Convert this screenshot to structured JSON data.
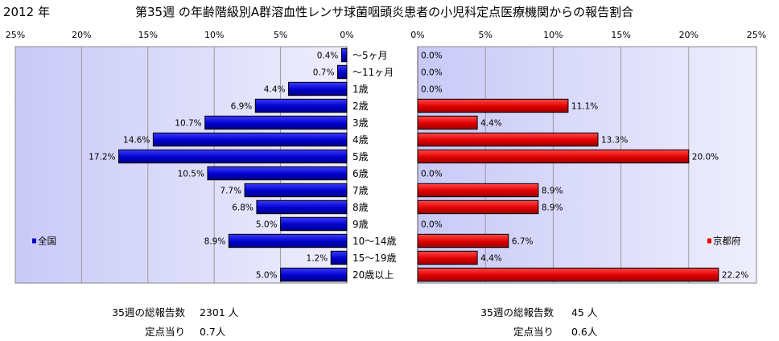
{
  "header": {
    "year": "2012 年",
    "title": "第35週 の年齢階級別A群溶血性レンサ球菌咽頭炎患者の小児科定点医療機関からの報告割合"
  },
  "chart_data": [
    {
      "type": "bar",
      "orientation": "horizontal",
      "direction": "right-to-left",
      "legend": "全国",
      "legend_position": "bottom-left",
      "color": "#0000CC",
      "xlim": [
        0,
        25
      ],
      "x_ticks": [
        "25%",
        "20%",
        "15%",
        "10%",
        "5%",
        "0%"
      ],
      "grid": true,
      "categories": [
        "～5ヶ月",
        "～11ヶ月",
        "1歳",
        "2歳",
        "3歳",
        "4歳",
        "5歳",
        "6歳",
        "7歳",
        "8歳",
        "9歳",
        "10～14歳",
        "15～19歳",
        "20歳以上"
      ],
      "values": [
        0.4,
        0.7,
        4.4,
        6.9,
        10.7,
        14.6,
        17.2,
        10.5,
        7.7,
        6.8,
        5.0,
        8.9,
        1.2,
        5.0
      ],
      "data_labels": [
        "0.4%",
        "0.7%",
        "4.4%",
        "6.9%",
        "10.7%",
        "14.6%",
        "17.2%",
        "10.5%",
        "7.7%",
        "6.8%",
        "5.0%",
        "8.9%",
        "1.2%",
        "5.0%"
      ]
    },
    {
      "type": "bar",
      "orientation": "horizontal",
      "direction": "left-to-right",
      "legend": "京都府",
      "legend_position": "bottom-right",
      "color": "#EE0000",
      "xlim": [
        0,
        25
      ],
      "x_ticks": [
        "0%",
        "5%",
        "10%",
        "15%",
        "20%",
        "25%"
      ],
      "grid": true,
      "categories": [
        "～5ヶ月",
        "～11ヶ月",
        "1歳",
        "2歳",
        "3歳",
        "4歳",
        "5歳",
        "6歳",
        "7歳",
        "8歳",
        "9歳",
        "10～14歳",
        "15～19歳",
        "20歳以上"
      ],
      "values": [
        0.0,
        0.0,
        0.0,
        11.1,
        4.4,
        13.3,
        20.0,
        0.0,
        8.9,
        8.9,
        0.0,
        6.7,
        4.4,
        22.2
      ],
      "data_labels": [
        "0.0%",
        "0.0%",
        "0.0%",
        "11.1%",
        "4.4%",
        "13.3%",
        "20.0%",
        "0.0%",
        "8.9%",
        "8.9%",
        "0.0%",
        "6.7%",
        "4.4%",
        "22.2%"
      ]
    }
  ],
  "footer": {
    "national": {
      "total_label": "35週の総報告数",
      "total_value": "2301 人",
      "per_label": "定点当り",
      "per_value": "0.7人"
    },
    "kyoto": {
      "total_label": "35週の総報告数",
      "total_value": "45 人",
      "per_label": "定点当り",
      "per_value": "0.6人"
    }
  }
}
